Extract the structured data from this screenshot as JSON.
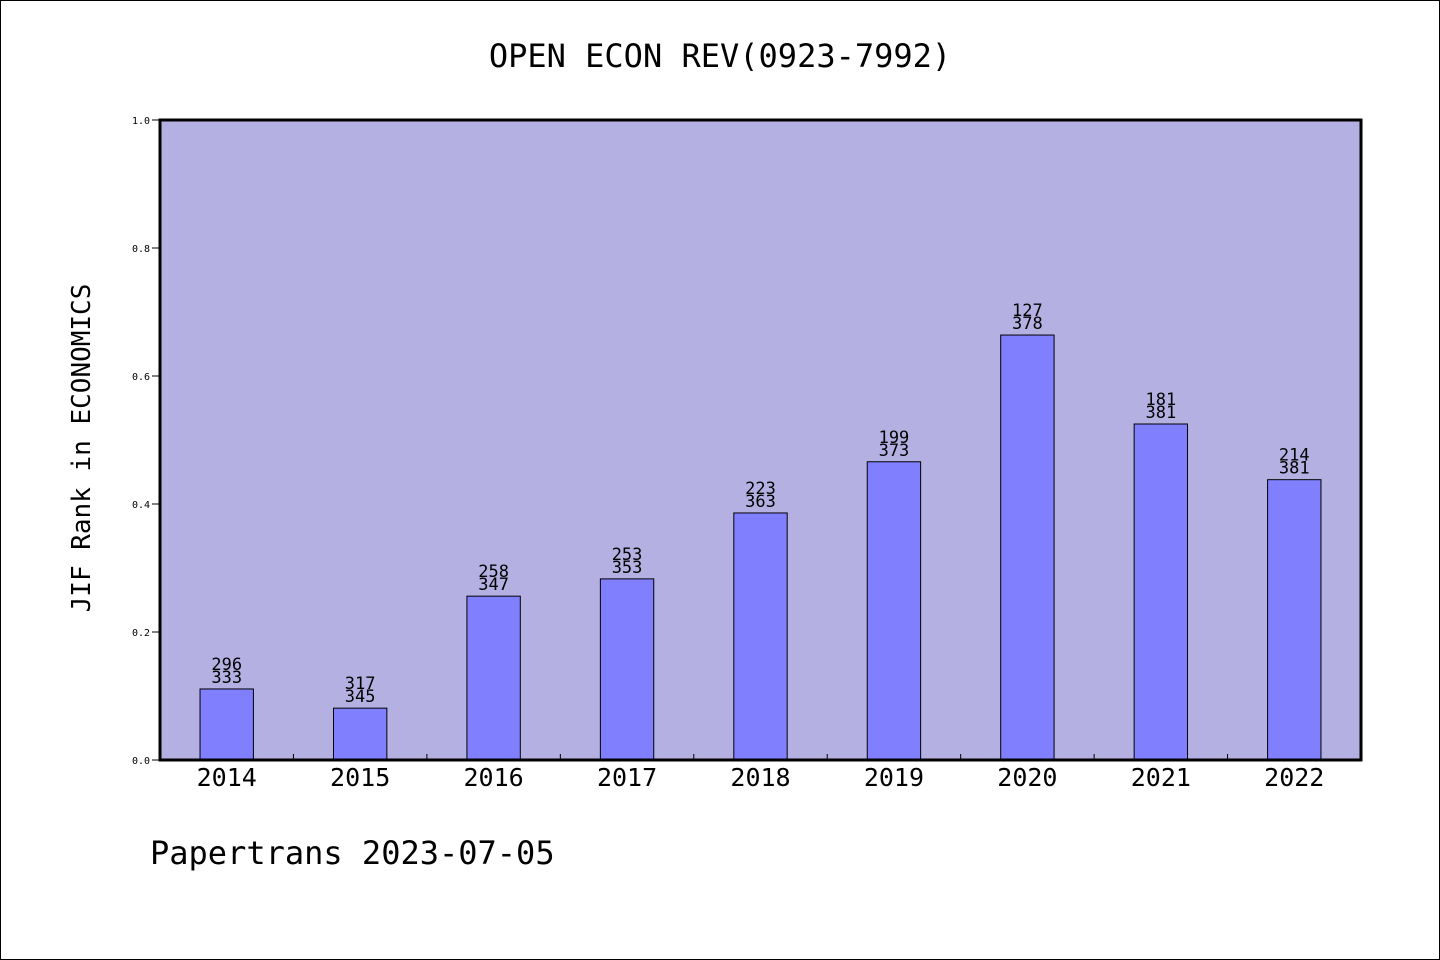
{
  "chart_data": {
    "type": "bar",
    "title": "OPEN ECON REV(0923-7992)",
    "xlabel": "",
    "ylabel": "JIF Rank in ECONOMICS",
    "ylim": [
      0,
      1
    ],
    "yticks": [
      "0.0",
      "0.2",
      "0.4",
      "0.6",
      "0.8",
      "1.0"
    ],
    "categories": [
      "2014",
      "2015",
      "2016",
      "2017",
      "2018",
      "2019",
      "2020",
      "2021",
      "2022"
    ],
    "values": [
      0.111,
      0.081,
      0.256,
      0.283,
      0.386,
      0.466,
      0.664,
      0.525,
      0.438
    ],
    "ranks": [
      "296",
      "317",
      "258",
      "253",
      "223",
      "199",
      "127",
      "181",
      "214"
    ],
    "totals": [
      "333",
      "345",
      "347",
      "353",
      "363",
      "373",
      "378",
      "381",
      "381"
    ],
    "grid": false,
    "legend": "none"
  },
  "footer": {
    "credit": "Papertrans 2023-07-05"
  },
  "colors": {
    "plot_background": "#b5b0e2",
    "bar_fill": "#8080ff",
    "axis": "#000000"
  }
}
